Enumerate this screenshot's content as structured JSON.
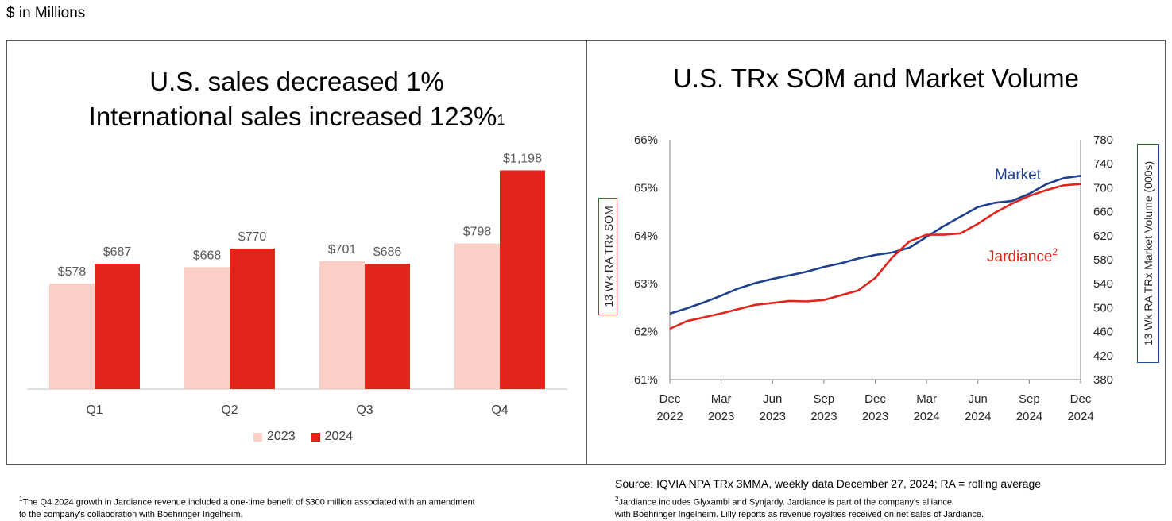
{
  "unit_label": "$ in Millions",
  "left_panel": {
    "title_line1": "U.S. sales decreased 1%",
    "title_line2": "International sales increased 123%",
    "title_sup": "1"
  },
  "right_panel": {
    "title": "U.S. TRx SOM and Market Volume"
  },
  "chart_data": [
    {
      "type": "bar",
      "categories": [
        "Q1",
        "Q2",
        "Q3",
        "Q4"
      ],
      "series": [
        {
          "name": "2023",
          "values": [
            578,
            668,
            701,
            798
          ],
          "labels": [
            "$578",
            "$668",
            "$701",
            "$798"
          ],
          "color": "#fbcfc8"
        },
        {
          "name": "2024",
          "values": [
            687,
            770,
            686,
            1198
          ],
          "labels": [
            "$687",
            "$770",
            "$686",
            "$1,198"
          ],
          "color": "#e3241b"
        }
      ],
      "ylim": [
        0,
        1300
      ],
      "legend_position": "bottom"
    },
    {
      "type": "line",
      "ylabel": "13 Wk RA TRx SOM",
      "ylabel_right": "13 Wk RA TRx Market Volume (000s)",
      "y_ticks": [
        "66%",
        "65%",
        "64%",
        "63%",
        "62%",
        "61%"
      ],
      "ylim": [
        61,
        66
      ],
      "y2_ticks": [
        "780",
        "740",
        "700",
        "660",
        "620",
        "580",
        "540",
        "500",
        "460",
        "420",
        "380"
      ],
      "y2lim": [
        380,
        780
      ],
      "x_ticks": [
        {
          "month": "Dec",
          "year": "2022"
        },
        {
          "month": "Mar",
          "year": "2023"
        },
        {
          "month": "Jun",
          "year": "2023"
        },
        {
          "month": "Sep",
          "year": "2023"
        },
        {
          "month": "Dec",
          "year": "2023"
        },
        {
          "month": "Mar",
          "year": "2024"
        },
        {
          "month": "Jun",
          "year": "2024"
        },
        {
          "month": "Sep",
          "year": "2024"
        },
        {
          "month": "Dec",
          "year": "2024"
        }
      ],
      "series": [
        {
          "name": "Market",
          "axis": "right",
          "color": "#1f3f8f",
          "x": [
            "Dec 2022",
            "Jan 2023",
            "Feb 2023",
            "Mar 2023",
            "Apr 2023",
            "May 2023",
            "Jun 2023",
            "Jul 2023",
            "Aug 2023",
            "Sep 2023",
            "Oct 2023",
            "Nov 2023",
            "Dec 2023",
            "Jan 2024",
            "Feb 2024",
            "Mar 2024",
            "Apr 2024",
            "May 2024",
            "Jun 2024",
            "Jul 2024",
            "Aug 2024",
            "Sep 2024",
            "Oct 2024",
            "Nov 2024",
            "Dec 2024"
          ],
          "values": [
            490,
            499,
            509,
            520,
            532,
            541,
            548,
            554,
            560,
            568,
            574,
            582,
            588,
            592,
            600,
            618,
            636,
            652,
            668,
            675,
            678,
            690,
            706,
            716,
            720
          ]
        },
        {
          "name": "Jardiance",
          "name_sup": "2",
          "axis": "left",
          "color": "#e3241b",
          "x": [
            "Dec 2022",
            "Jan 2023",
            "Feb 2023",
            "Mar 2023",
            "Apr 2023",
            "May 2023",
            "Jun 2023",
            "Jul 2023",
            "Aug 2023",
            "Sep 2023",
            "Oct 2023",
            "Nov 2023",
            "Dec 2023",
            "Jan 2024",
            "Feb 2024",
            "Mar 2024",
            "Apr 2024",
            "May 2024",
            "Jun 2024",
            "Jul 2024",
            "Aug 2024",
            "Sep 2024",
            "Oct 2024",
            "Nov 2024",
            "Dec 2024"
          ],
          "values": [
            62.06,
            62.22,
            62.3,
            62.38,
            62.47,
            62.56,
            62.6,
            62.64,
            62.63,
            62.66,
            62.76,
            62.86,
            63.12,
            63.55,
            63.88,
            64.02,
            64.02,
            64.05,
            64.25,
            64.48,
            64.67,
            64.83,
            64.95,
            65.05,
            65.08
          ]
        }
      ]
    }
  ],
  "source": "Source: IQVIA NPA TRx 3MMA, weekly data December 27, 2024; RA = rolling average",
  "footnote_left_sup": "1",
  "footnote_left_line1": "The Q4 2024 growth in Jardiance revenue included a one-time benefit of $300 million associated with an amendment",
  "footnote_left_line2": "to the company's collaboration with Boehringer Ingelheim.",
  "footnote_right_sup": "2",
  "footnote_right_line1": "Jardiance includes Glyxambi and Synjardy. Jardiance is part of the company's alliance",
  "footnote_right_line2": "with Boehringer Ingelheim. Lilly reports as revenue royalties received on net sales of Jardiance."
}
